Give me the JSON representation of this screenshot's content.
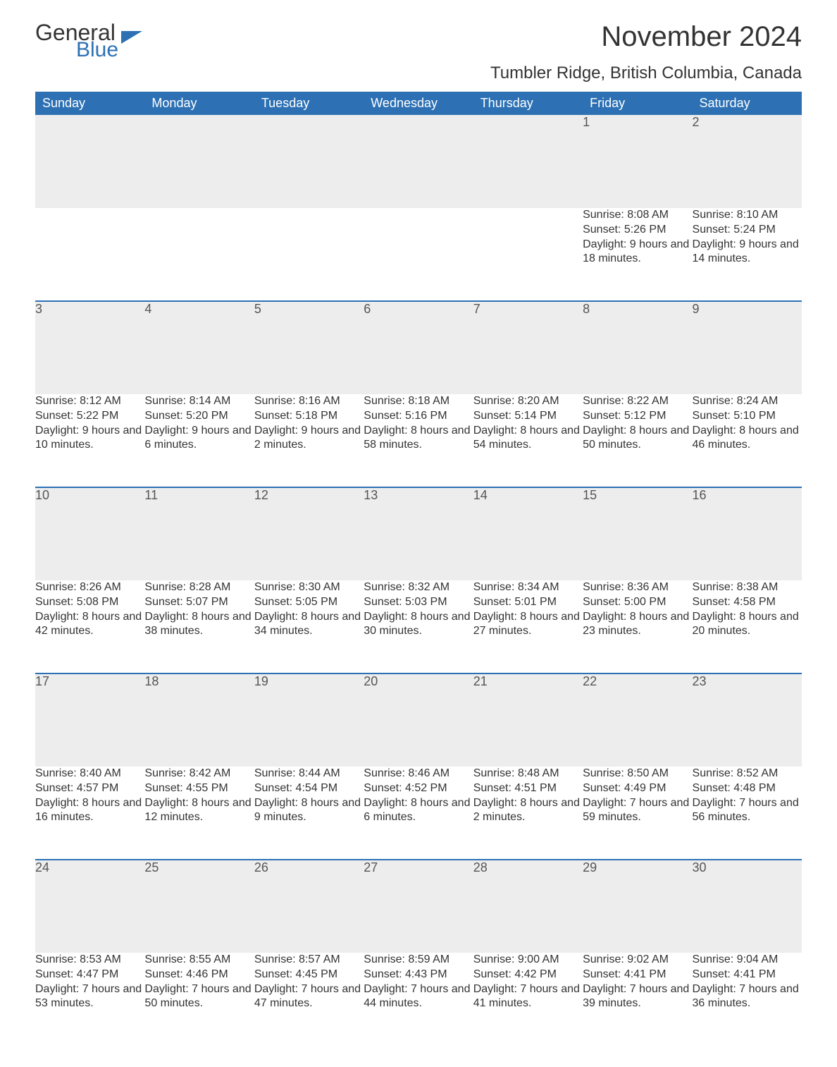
{
  "brand": {
    "general": "General",
    "blue": "Blue"
  },
  "title": "November 2024",
  "location": "Tumbler Ridge, British Columbia, Canada",
  "colors": {
    "header_bg": "#2d71b4",
    "header_text": "#ffffff",
    "daynum_bg": "#ededed",
    "row_border": "#2d71b4",
    "body_text": "#333333",
    "page_bg": "#ffffff"
  },
  "typography": {
    "title_fontsize": 40,
    "location_fontsize": 24,
    "header_fontsize": 18,
    "daynum_fontsize": 18,
    "cell_fontsize": 16,
    "font_family": "Segoe UI"
  },
  "day_headers": [
    "Sunday",
    "Monday",
    "Tuesday",
    "Wednesday",
    "Thursday",
    "Friday",
    "Saturday"
  ],
  "labels": {
    "sunrise": "Sunrise:",
    "sunset": "Sunset:",
    "daylight": "Daylight:"
  },
  "weeks": [
    [
      null,
      null,
      null,
      null,
      null,
      {
        "n": "1",
        "sunrise": "8:08 AM",
        "sunset": "5:26 PM",
        "daylight": "9 hours and 18 minutes."
      },
      {
        "n": "2",
        "sunrise": "8:10 AM",
        "sunset": "5:24 PM",
        "daylight": "9 hours and 14 minutes."
      }
    ],
    [
      {
        "n": "3",
        "sunrise": "8:12 AM",
        "sunset": "5:22 PM",
        "daylight": "9 hours and 10 minutes."
      },
      {
        "n": "4",
        "sunrise": "8:14 AM",
        "sunset": "5:20 PM",
        "daylight": "9 hours and 6 minutes."
      },
      {
        "n": "5",
        "sunrise": "8:16 AM",
        "sunset": "5:18 PM",
        "daylight": "9 hours and 2 minutes."
      },
      {
        "n": "6",
        "sunrise": "8:18 AM",
        "sunset": "5:16 PM",
        "daylight": "8 hours and 58 minutes."
      },
      {
        "n": "7",
        "sunrise": "8:20 AM",
        "sunset": "5:14 PM",
        "daylight": "8 hours and 54 minutes."
      },
      {
        "n": "8",
        "sunrise": "8:22 AM",
        "sunset": "5:12 PM",
        "daylight": "8 hours and 50 minutes."
      },
      {
        "n": "9",
        "sunrise": "8:24 AM",
        "sunset": "5:10 PM",
        "daylight": "8 hours and 46 minutes."
      }
    ],
    [
      {
        "n": "10",
        "sunrise": "8:26 AM",
        "sunset": "5:08 PM",
        "daylight": "8 hours and 42 minutes."
      },
      {
        "n": "11",
        "sunrise": "8:28 AM",
        "sunset": "5:07 PM",
        "daylight": "8 hours and 38 minutes."
      },
      {
        "n": "12",
        "sunrise": "8:30 AM",
        "sunset": "5:05 PM",
        "daylight": "8 hours and 34 minutes."
      },
      {
        "n": "13",
        "sunrise": "8:32 AM",
        "sunset": "5:03 PM",
        "daylight": "8 hours and 30 minutes."
      },
      {
        "n": "14",
        "sunrise": "8:34 AM",
        "sunset": "5:01 PM",
        "daylight": "8 hours and 27 minutes."
      },
      {
        "n": "15",
        "sunrise": "8:36 AM",
        "sunset": "5:00 PM",
        "daylight": "8 hours and 23 minutes."
      },
      {
        "n": "16",
        "sunrise": "8:38 AM",
        "sunset": "4:58 PM",
        "daylight": "8 hours and 20 minutes."
      }
    ],
    [
      {
        "n": "17",
        "sunrise": "8:40 AM",
        "sunset": "4:57 PM",
        "daylight": "8 hours and 16 minutes."
      },
      {
        "n": "18",
        "sunrise": "8:42 AM",
        "sunset": "4:55 PM",
        "daylight": "8 hours and 12 minutes."
      },
      {
        "n": "19",
        "sunrise": "8:44 AM",
        "sunset": "4:54 PM",
        "daylight": "8 hours and 9 minutes."
      },
      {
        "n": "20",
        "sunrise": "8:46 AM",
        "sunset": "4:52 PM",
        "daylight": "8 hours and 6 minutes."
      },
      {
        "n": "21",
        "sunrise": "8:48 AM",
        "sunset": "4:51 PM",
        "daylight": "8 hours and 2 minutes."
      },
      {
        "n": "22",
        "sunrise": "8:50 AM",
        "sunset": "4:49 PM",
        "daylight": "7 hours and 59 minutes."
      },
      {
        "n": "23",
        "sunrise": "8:52 AM",
        "sunset": "4:48 PM",
        "daylight": "7 hours and 56 minutes."
      }
    ],
    [
      {
        "n": "24",
        "sunrise": "8:53 AM",
        "sunset": "4:47 PM",
        "daylight": "7 hours and 53 minutes."
      },
      {
        "n": "25",
        "sunrise": "8:55 AM",
        "sunset": "4:46 PM",
        "daylight": "7 hours and 50 minutes."
      },
      {
        "n": "26",
        "sunrise": "8:57 AM",
        "sunset": "4:45 PM",
        "daylight": "7 hours and 47 minutes."
      },
      {
        "n": "27",
        "sunrise": "8:59 AM",
        "sunset": "4:43 PM",
        "daylight": "7 hours and 44 minutes."
      },
      {
        "n": "28",
        "sunrise": "9:00 AM",
        "sunset": "4:42 PM",
        "daylight": "7 hours and 41 minutes."
      },
      {
        "n": "29",
        "sunrise": "9:02 AM",
        "sunset": "4:41 PM",
        "daylight": "7 hours and 39 minutes."
      },
      {
        "n": "30",
        "sunrise": "9:04 AM",
        "sunset": "4:41 PM",
        "daylight": "7 hours and 36 minutes."
      }
    ]
  ]
}
